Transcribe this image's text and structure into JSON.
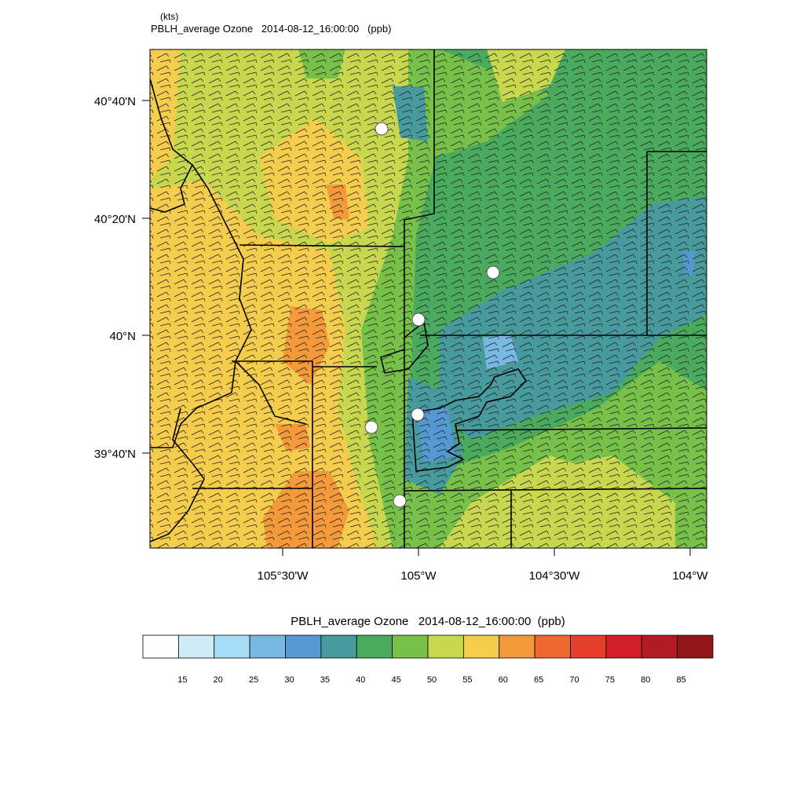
{
  "header": {
    "units": "(kts)",
    "title": "PBLH_average Ozone   2014-08-12_16:00:00   (ppb)"
  },
  "map": {
    "lat_labels": [
      "40°40'N",
      "40°20'N",
      "40°N",
      "39°40'N"
    ],
    "lon_labels": [
      "105°30'W",
      "105°W",
      "104°30'W",
      "104°W"
    ]
  },
  "colorbar": {
    "title": "PBLH_average Ozone   2014-08-12_16:00:00  (ppb)",
    "labels": [
      15,
      20,
      25,
      30,
      35,
      40,
      45,
      50,
      55,
      60,
      65,
      70,
      75,
      80,
      85
    ],
    "colors": [
      "#ffffff",
      "#d0ecf8",
      "#a6dcf5",
      "#7ab8e4",
      "#5599d4",
      "#479a9d",
      "#4aab5e",
      "#77c14a",
      "#c8d84e",
      "#f5cd4c",
      "#f49a3a",
      "#ee6930",
      "#e33f2c",
      "#d11f2a",
      "#b21a24",
      "#931618"
    ]
  }
}
